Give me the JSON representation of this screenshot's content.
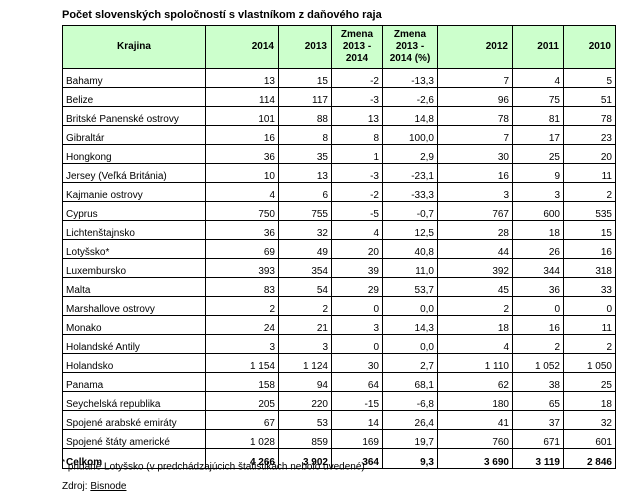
{
  "title": "Počet slovenských spoločností s vlastníkom z daňového raja",
  "headers": [
    "Krajina",
    "2014",
    "2013",
    "Zmena 2013 - 2014",
    "Zmena 2013 - 2014 (%)",
    "2012",
    "2011",
    "2010"
  ],
  "rows": [
    [
      "Bahamy",
      "13",
      "15",
      "-2",
      "-13,3",
      "7",
      "4",
      "5"
    ],
    [
      "Belize",
      "114",
      "117",
      "-3",
      "-2,6",
      "96",
      "75",
      "51"
    ],
    [
      "Britské Panenské ostrovy",
      "101",
      "88",
      "13",
      "14,8",
      "78",
      "81",
      "78"
    ],
    [
      "Gibraltár",
      "16",
      "8",
      "8",
      "100,0",
      "7",
      "17",
      "23"
    ],
    [
      "Hongkong",
      "36",
      "35",
      "1",
      "2,9",
      "30",
      "25",
      "20"
    ],
    [
      "Jersey (Veľká Británia)",
      "10",
      "13",
      "-3",
      "-23,1",
      "16",
      "9",
      "11"
    ],
    [
      "Kajmanie ostrovy",
      "4",
      "6",
      "-2",
      "-33,3",
      "3",
      "3",
      "2"
    ],
    [
      "Cyprus",
      "750",
      "755",
      "-5",
      "-0,7",
      "767",
      "600",
      "535"
    ],
    [
      "Lichtenštajnsko",
      "36",
      "32",
      "4",
      "12,5",
      "28",
      "18",
      "15"
    ],
    [
      "Lotyšsko*",
      "69",
      "49",
      "20",
      "40,8",
      "44",
      "26",
      "16"
    ],
    [
      "Luxembursko",
      "393",
      "354",
      "39",
      "11,0",
      "392",
      "344",
      "318"
    ],
    [
      "Malta",
      "83",
      "54",
      "29",
      "53,7",
      "45",
      "36",
      "33"
    ],
    [
      "Marshallove ostrovy",
      "2",
      "2",
      "0",
      "0,0",
      "2",
      "0",
      "0"
    ],
    [
      "Monako",
      "24",
      "21",
      "3",
      "14,3",
      "18",
      "16",
      "11"
    ],
    [
      "Holandské Antily",
      "3",
      "3",
      "0",
      "0,0",
      "4",
      "2",
      "2"
    ],
    [
      "Holandsko",
      "1 154",
      "1 124",
      "30",
      "2,7",
      "1 110",
      "1 052",
      "1 050"
    ],
    [
      "Panama",
      "158",
      "94",
      "64",
      "68,1",
      "62",
      "38",
      "25"
    ],
    [
      "Seychelská republika",
      "205",
      "220",
      "-15",
      "-6,8",
      "180",
      "65",
      "18"
    ],
    [
      "Spojené arabské emiráty",
      "67",
      "53",
      "14",
      "26,4",
      "41",
      "37",
      "32"
    ],
    [
      "Spojené štáty americké",
      "1 028",
      "859",
      "169",
      "19,7",
      "760",
      "671",
      "601"
    ]
  ],
  "total": [
    "Celkom",
    "4 266",
    "3 902",
    "364",
    "9,3",
    "3 690",
    "3 119",
    "2 846"
  ],
  "note": {
    "mark": "*",
    "text": " pridané Lotyšsko (v predchádzajúcich štatistikách nebolo uvedené)"
  },
  "source": {
    "label": "Zdroj: ",
    "name": "Bisnode"
  }
}
